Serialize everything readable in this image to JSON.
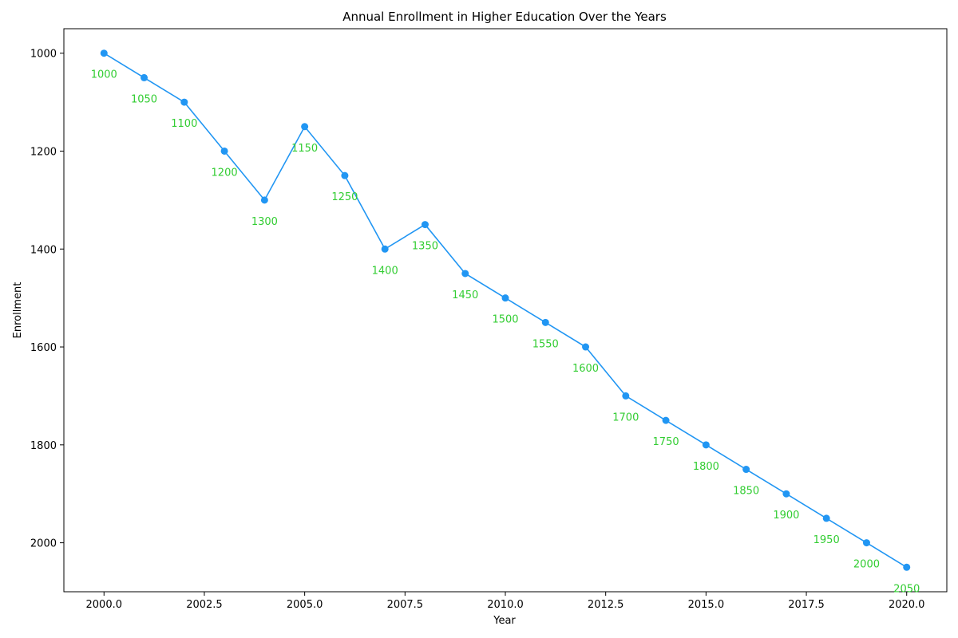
{
  "chart_data": {
    "type": "line",
    "title": "Annual Enrollment in Higher Education Over the Years",
    "xlabel": "Year",
    "ylabel": "Enrollment",
    "x": [
      2000,
      2001,
      2002,
      2003,
      2004,
      2005,
      2006,
      2007,
      2008,
      2009,
      2010,
      2011,
      2012,
      2013,
      2014,
      2015,
      2016,
      2017,
      2018,
      2019,
      2020
    ],
    "series": [
      {
        "values": [
          1000,
          1050,
          1100,
          1200,
          1300,
          1150,
          1250,
          1400,
          1350,
          1450,
          1500,
          1550,
          1600,
          1700,
          1750,
          1800,
          1850,
          1900,
          1950,
          2000,
          2050
        ],
        "color": "#2196f3",
        "label_color": "#32cd32"
      }
    ],
    "xlim": [
      1999,
      2021
    ],
    "ylim": [
      2100,
      950
    ],
    "y_inverted": true,
    "xticks": [
      "2000.0",
      "2002.5",
      "2005.0",
      "2007.5",
      "2010.0",
      "2012.5",
      "2015.0",
      "2017.5",
      "2020.0"
    ],
    "xtick_values": [
      2000,
      2002.5,
      2005,
      2007.5,
      2010,
      2012.5,
      2015,
      2017.5,
      2020
    ],
    "yticks": [
      "1000",
      "1200",
      "1400",
      "1600",
      "1800",
      "2000"
    ],
    "ytick_values": [
      1000,
      1200,
      1400,
      1600,
      1800,
      2000
    ],
    "grid": false,
    "legend": "none"
  }
}
